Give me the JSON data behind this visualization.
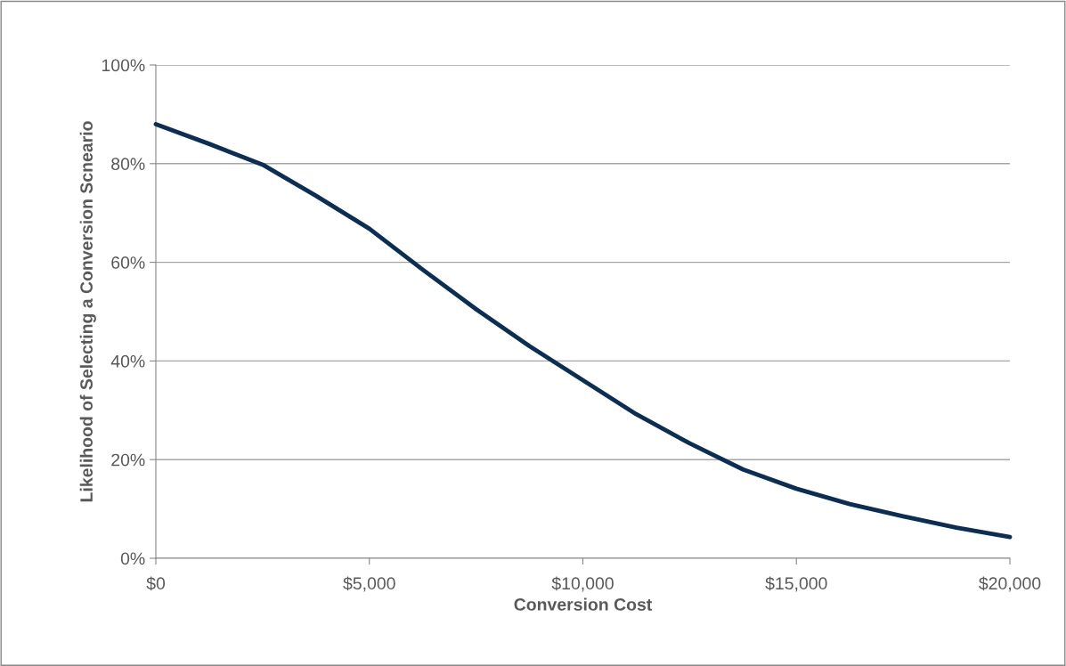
{
  "chart_data": {
    "type": "line",
    "xlabel": "Conversion Cost",
    "ylabel": "Likelihood of Selecting a Conversion Scneario",
    "x": [
      0,
      1250,
      2500,
      3750,
      5000,
      6250,
      7500,
      8750,
      10000,
      11250,
      12500,
      13750,
      15000,
      16250,
      17500,
      18750,
      20000
    ],
    "series": [
      {
        "color": "#0b2e55",
        "values": [
          88,
          84,
          79.8,
          73.5,
          66.8,
          58.5,
          50.5,
          43,
          36.1,
          29.2,
          23.3,
          18,
          14.1,
          11,
          8.5,
          6.2,
          4.3
        ]
      }
    ],
    "xlim": [
      0,
      20000
    ],
    "xticks": [
      {
        "value": 0,
        "label": "$0"
      },
      {
        "value": 5000,
        "label": "$5,000"
      },
      {
        "value": 10000,
        "label": "$10,000"
      },
      {
        "value": 15000,
        "label": "$15,000"
      },
      {
        "value": 20000,
        "label": "$20,000"
      }
    ],
    "ylim": [
      0,
      100
    ],
    "yticks": [
      {
        "value": 0,
        "label": "0%"
      },
      {
        "value": 20,
        "label": "20%"
      },
      {
        "value": 40,
        "label": "40%"
      },
      {
        "value": 60,
        "label": "60%"
      },
      {
        "value": 80,
        "label": "80%"
      },
      {
        "value": 100,
        "label": "100%"
      }
    ],
    "grid": "y",
    "marker": "none",
    "line_style": "solid",
    "legend": false
  }
}
